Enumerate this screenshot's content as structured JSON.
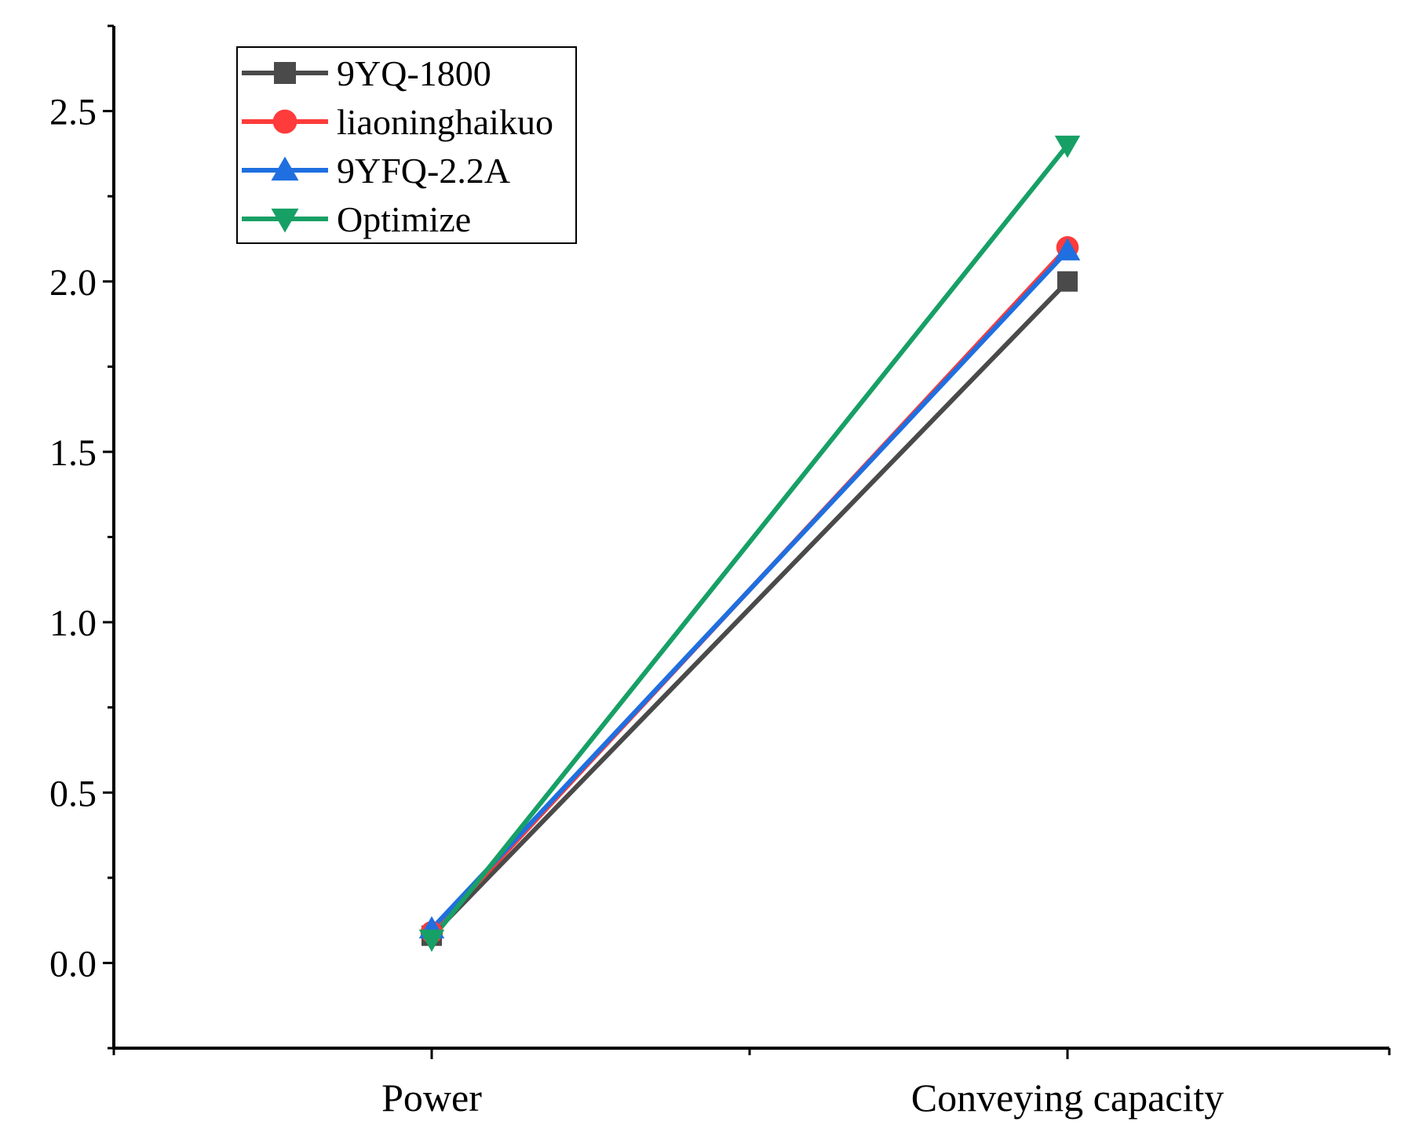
{
  "chart_data": {
    "type": "line",
    "title": "",
    "xlabel": "",
    "ylabel": "",
    "categories": [
      "Power",
      "Conveying capacity"
    ],
    "ylim": [
      -0.25,
      2.75
    ],
    "yticks": [
      0.0,
      0.5,
      1.0,
      1.5,
      2.0,
      2.5
    ],
    "ytick_labels": [
      "0.0",
      "0.5",
      "1.0",
      "1.5",
      "2.0",
      "2.5"
    ],
    "grid": false,
    "legend_position": "top-left",
    "series": [
      {
        "name": "9YQ-1800",
        "values": [
          0.08,
          2.0
        ],
        "color": "#4a4a4a",
        "marker": "square"
      },
      {
        "name": "liaoninghaikuo",
        "values": [
          0.09,
          2.1
        ],
        "color": "#ff3b3b",
        "marker": "circle"
      },
      {
        "name": "9YFQ-2.2A",
        "values": [
          0.1,
          2.09
        ],
        "color": "#1f6fe0",
        "marker": "triangle-up"
      },
      {
        "name": "Optimize",
        "values": [
          0.07,
          2.4
        ],
        "color": "#17a065",
        "marker": "triangle-down"
      }
    ]
  }
}
